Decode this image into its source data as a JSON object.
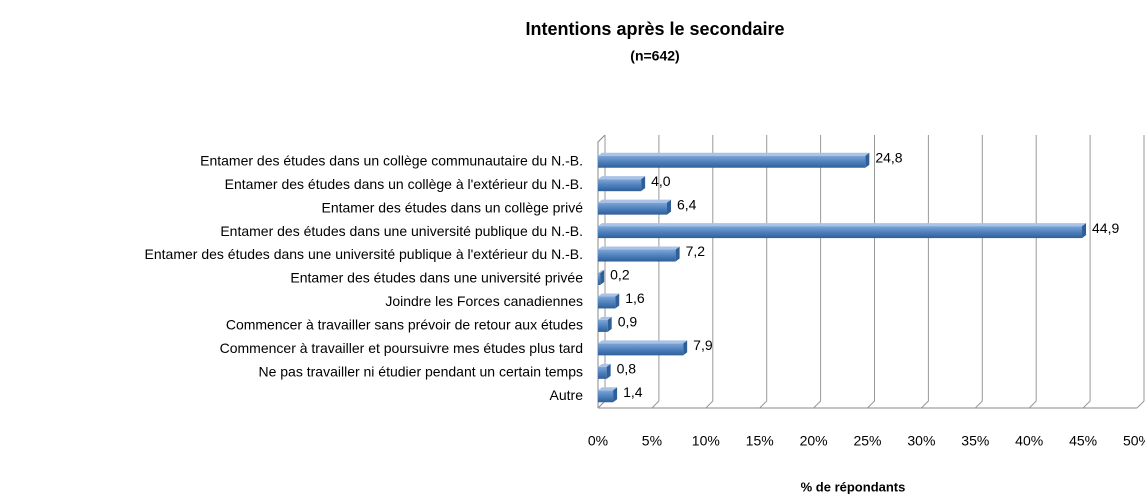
{
  "chart_data": {
    "type": "hbar",
    "title": "Intentions après le secondaire",
    "subtitle": "(n=642)",
    "x_label": "% de répondants",
    "categories": [
      "Entamer des études dans un collège communautaire du N.-B.",
      "Entamer des études dans un collège à l'extérieur du N.-B.",
      "Entamer des études dans un collège privé",
      "Entamer des études dans une université publique  du N.-B.",
      "Entamer des études dans une université publique  à l'extérieur du N.-B.",
      "Entamer des études dans une université privée",
      "Joindre les Forces canadiennes",
      "Commencer à travailler sans prévoir de retour aux études",
      "Commencer à travailler et poursuivre mes études plus tard",
      "Ne pas travailler ni étudier pendant un certain temps",
      "Autre"
    ],
    "values": [
      24.8,
      4.0,
      6.4,
      44.9,
      7.2,
      0.2,
      1.6,
      0.9,
      7.9,
      0.8,
      1.4
    ],
    "value_labels": [
      "24,8",
      "4,0",
      "6,4",
      "44,9",
      "7,2",
      "0,2",
      "1,6",
      "0,9",
      "7,9",
      "0,8",
      "1,4"
    ],
    "color": "#4f81bd",
    "xlim": [
      0,
      50
    ],
    "xticks": [
      {
        "value": 0,
        "label": "0%"
      },
      {
        "value": 5,
        "label": "5%"
      },
      {
        "value": 10,
        "label": "10%"
      },
      {
        "value": 15,
        "label": "15%"
      },
      {
        "value": 20,
        "label": "20%"
      },
      {
        "value": 25,
        "label": "25%"
      },
      {
        "value": 30,
        "label": "30%"
      },
      {
        "value": 35,
        "label": "35%"
      },
      {
        "value": 40,
        "label": "40%"
      },
      {
        "value": 45,
        "label": "45%"
      },
      {
        "value": 50,
        "label": "50%"
      }
    ],
    "grid": true
  }
}
